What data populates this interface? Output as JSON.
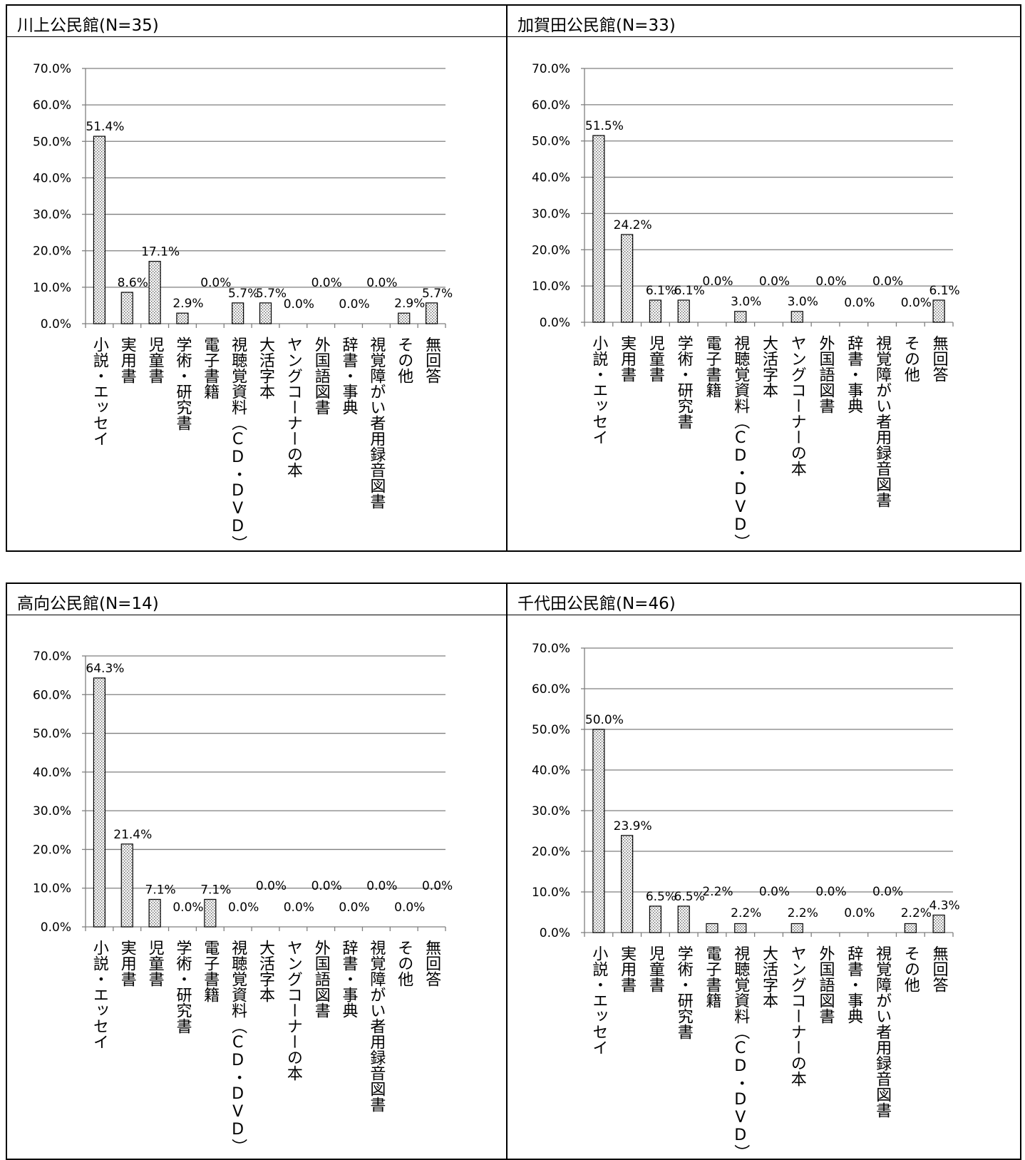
{
  "colors": {
    "bar_fill": "#f4f4f4",
    "bar_dots": "#555555",
    "grid": "#7f7f7f",
    "axis": "#7f7f7f",
    "border": "#000000"
  },
  "pattern": "dotted",
  "categories": [
    "小説・エッセイ",
    "実用書",
    "児童書",
    "学術・研究書",
    "電子書籍",
    "視聴覚資料（CD・DVD）",
    "大活字本",
    "ヤングコーナーの本",
    "外国語図書",
    "辞書・事典",
    "視覚障がい者用録音図書",
    "その他",
    "無回答"
  ],
  "panels": [
    {
      "title": "川上公民館(N=35)",
      "chart_data": {
        "type": "bar",
        "categories": [
          "小説・エッセイ",
          "実用書",
          "児童書",
          "学術・研究書",
          "電子書籍",
          "視聴覚資料（CD・DVD）",
          "大活字本",
          "ヤングコーナーの本",
          "外国語図書",
          "辞書・事典",
          "視覚障がい者用録音図書",
          "その他",
          "無回答"
        ],
        "values": [
          51.4,
          8.6,
          17.1,
          2.9,
          0.0,
          5.7,
          5.7,
          0.0,
          0.0,
          0.0,
          0.0,
          2.9,
          5.7
        ],
        "data_labels": [
          "51.4%",
          "8.6%",
          "17.1%",
          "2.9%",
          "0.0%",
          "5.7%",
          "5.7%",
          "0.0%",
          "0.0%",
          "0.0%",
          "0.0%",
          "2.9%",
          "5.7%"
        ],
        "yticks": [
          "0.0%",
          "10.0%",
          "20.0%",
          "30.0%",
          "40.0%",
          "50.0%",
          "60.0%",
          "70.0%"
        ],
        "ylim": [
          0,
          70
        ],
        "grid": true,
        "legend": "none"
      }
    },
    {
      "title": "加賀田公民館(N=33)",
      "chart_data": {
        "type": "bar",
        "categories": [
          "小説・エッセイ",
          "実用書",
          "児童書",
          "学術・研究書",
          "電子書籍",
          "視聴覚資料（CD・DVD）",
          "大活字本",
          "ヤングコーナーの本",
          "外国語図書",
          "辞書・事典",
          "視覚障がい者用録音図書",
          "その他",
          "無回答"
        ],
        "values": [
          51.5,
          24.2,
          6.1,
          6.1,
          0.0,
          3.0,
          0.0,
          3.0,
          0.0,
          0.0,
          0.0,
          0.0,
          6.1
        ],
        "data_labels": [
          "51.5%",
          "24.2%",
          "6.1%",
          "6.1%",
          "0.0%",
          "3.0%",
          "0.0%",
          "3.0%",
          "0.0%",
          "0.0%",
          "0.0%",
          "0.0%",
          "6.1%"
        ],
        "yticks": [
          "0.0%",
          "10.0%",
          "20.0%",
          "30.0%",
          "40.0%",
          "50.0%",
          "60.0%",
          "70.0%"
        ],
        "ylim": [
          0,
          70
        ],
        "grid": true,
        "legend": "none"
      }
    },
    {
      "title": "高向公民館(N=14)",
      "chart_data": {
        "type": "bar",
        "categories": [
          "小説・エッセイ",
          "実用書",
          "児童書",
          "学術・研究書",
          "電子書籍",
          "視聴覚資料（CD・DVD）",
          "大活字本",
          "ヤングコーナーの本",
          "外国語図書",
          "辞書・事典",
          "視覚障がい者用録音図書",
          "その他",
          "無回答"
        ],
        "values": [
          64.3,
          21.4,
          7.1,
          0.0,
          7.1,
          0.0,
          0.0,
          0.0,
          0.0,
          0.0,
          0.0,
          0.0,
          0.0
        ],
        "data_labels": [
          "64.3%",
          "21.4%",
          "7.1%",
          "0.0%",
          "7.1%",
          "0.0%",
          "0.0%",
          "0.0%",
          "0.0%",
          "0.0%",
          "0.0%",
          "0.0%",
          "0.0%"
        ],
        "yticks": [
          "0.0%",
          "10.0%",
          "20.0%",
          "30.0%",
          "40.0%",
          "50.0%",
          "60.0%",
          "70.0%"
        ],
        "ylim": [
          0,
          70
        ],
        "grid": true,
        "legend": "none"
      }
    },
    {
      "title": "千代田公民館(N=46)",
      "chart_data": {
        "type": "bar",
        "categories": [
          "小説・エッセイ",
          "実用書",
          "児童書",
          "学術・研究書",
          "電子書籍",
          "視聴覚資料（CD・DVD）",
          "大活字本",
          "ヤングコーナーの本",
          "外国語図書",
          "辞書・事典",
          "視覚障がい者用録音図書",
          "その他",
          "無回答"
        ],
        "values": [
          50.0,
          23.9,
          6.5,
          6.5,
          2.2,
          2.2,
          0.0,
          2.2,
          0.0,
          0.0,
          0.0,
          2.2,
          4.3
        ],
        "data_labels": [
          "50.0%",
          "23.9%",
          "6.5%",
          "6.5%",
          "2.2%",
          "2.2%",
          "0.0%",
          "2.2%",
          "0.0%",
          "0.0%",
          "0.0%",
          "2.2%",
          "4.3%"
        ],
        "yticks": [
          "0.0%",
          "10.0%",
          "20.0%",
          "30.0%",
          "40.0%",
          "50.0%",
          "60.0%",
          "70.0%"
        ],
        "ylim": [
          0,
          70
        ],
        "grid": true,
        "legend": "none"
      }
    }
  ]
}
